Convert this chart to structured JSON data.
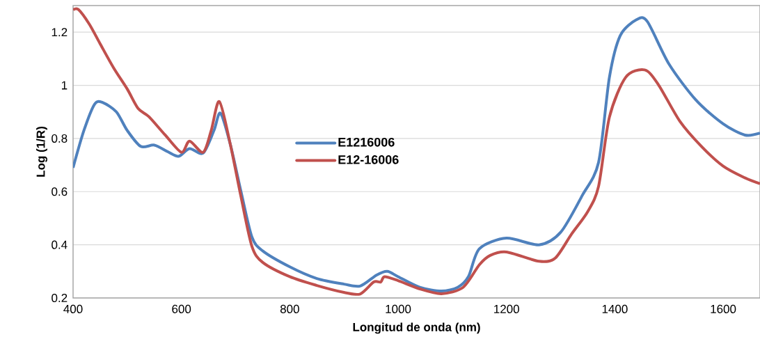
{
  "chart_data": {
    "type": "line",
    "xlabel": "Longitud de onda (nm)",
    "ylabel": "Log (1/R)",
    "xlim": [
      400,
      1668
    ],
    "ylim": [
      0.2,
      1.3
    ],
    "xticks": [
      400,
      600,
      800,
      1000,
      1200,
      1400,
      1600
    ],
    "yticks": [
      {
        "value": 0.2,
        "label": "0.2"
      },
      {
        "value": 0.4,
        "label": "0.4"
      },
      {
        "value": 0.6,
        "label": "0.6"
      },
      {
        "value": 0.8,
        "label": "0.8"
      },
      {
        "value": 1.0,
        "label": "1"
      },
      {
        "value": 1.2,
        "label": "1.2"
      }
    ],
    "grid": "y",
    "legend": "center",
    "marker": "none",
    "line_style": "solid",
    "series": [
      {
        "name": "E1216006",
        "color": "#4f81bd",
        "x": [
          400,
          420,
          440,
          455,
          480,
          500,
          525,
          550,
          575,
          595,
          615,
          640,
          660,
          672,
          690,
          710,
          730,
          750,
          800,
          850,
          900,
          930,
          960,
          980,
          1000,
          1040,
          1080,
          1110,
          1130,
          1150,
          1200,
          1260,
          1300,
          1340,
          1370,
          1390,
          1410,
          1440,
          1460,
          1500,
          1550,
          1600,
          1640,
          1668
        ],
        "values": [
          0.69,
          0.83,
          0.93,
          0.935,
          0.9,
          0.83,
          0.77,
          0.775,
          0.75,
          0.733,
          0.762,
          0.745,
          0.83,
          0.895,
          0.78,
          0.6,
          0.43,
          0.377,
          0.317,
          0.273,
          0.252,
          0.245,
          0.286,
          0.3,
          0.28,
          0.24,
          0.226,
          0.24,
          0.281,
          0.385,
          0.425,
          0.4,
          0.447,
          0.586,
          0.71,
          1.03,
          1.187,
          1.247,
          1.24,
          1.08,
          0.944,
          0.855,
          0.813,
          0.82
        ]
      },
      {
        "name": "E12-16006",
        "color": "#c0504d",
        "x": [
          400,
          410,
          430,
          450,
          475,
          500,
          520,
          540,
          570,
          600,
          615,
          640,
          655,
          670,
          690,
          710,
          730,
          750,
          800,
          850,
          900,
          930,
          955,
          968,
          975,
          1000,
          1040,
          1080,
          1120,
          1150,
          1170,
          1200,
          1260,
          1290,
          1320,
          1350,
          1370,
          1390,
          1420,
          1455,
          1480,
          1520,
          1560,
          1600,
          1640,
          1668
        ],
        "values": [
          1.284,
          1.285,
          1.23,
          1.156,
          1.065,
          0.986,
          0.913,
          0.882,
          0.813,
          0.748,
          0.79,
          0.748,
          0.83,
          0.939,
          0.78,
          0.58,
          0.395,
          0.334,
          0.28,
          0.247,
          0.221,
          0.215,
          0.26,
          0.26,
          0.28,
          0.265,
          0.234,
          0.216,
          0.24,
          0.325,
          0.36,
          0.373,
          0.338,
          0.35,
          0.44,
          0.525,
          0.62,
          0.88,
          1.03,
          1.058,
          1.004,
          0.865,
          0.77,
          0.696,
          0.652,
          0.63
        ]
      }
    ]
  }
}
